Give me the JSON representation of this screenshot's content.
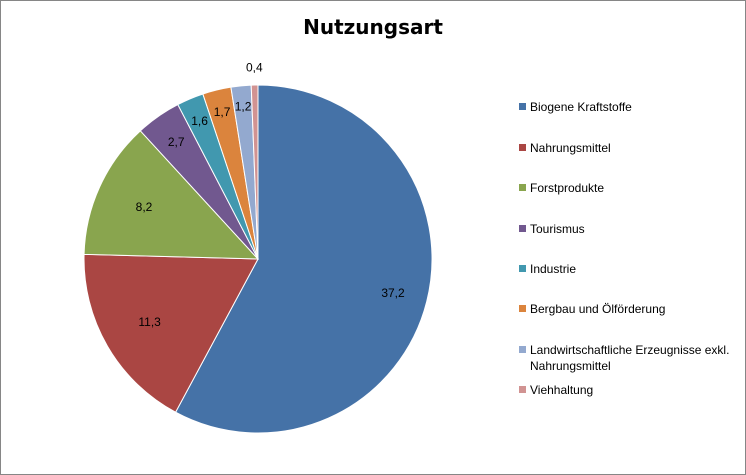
{
  "chart_data": {
    "type": "pie",
    "title": "Nutzungsart",
    "categories": [
      "Biogene Kraftstoffe",
      "Nahrungsmittel",
      "Forstprodukte",
      "Tourismus",
      "Industrie",
      "Bergbau und Ölförderung",
      "Landwirtschaftliche Erzeugnisse exkl. Nahrungsmittel",
      "Viehhaltung"
    ],
    "values": [
      37.2,
      11.3,
      8.2,
      2.7,
      1.6,
      1.7,
      1.2,
      0.4
    ],
    "labels": [
      "37,2",
      "11,3",
      "8,2",
      "2,7",
      "1,6",
      "1,7",
      "1,2",
      "0,4"
    ],
    "colors": [
      "#4572A7",
      "#AA4643",
      "#89A54E",
      "#71588F",
      "#4198AF",
      "#DB843D",
      "#93A9CF",
      "#D19392"
    ],
    "legend_position": "right"
  }
}
